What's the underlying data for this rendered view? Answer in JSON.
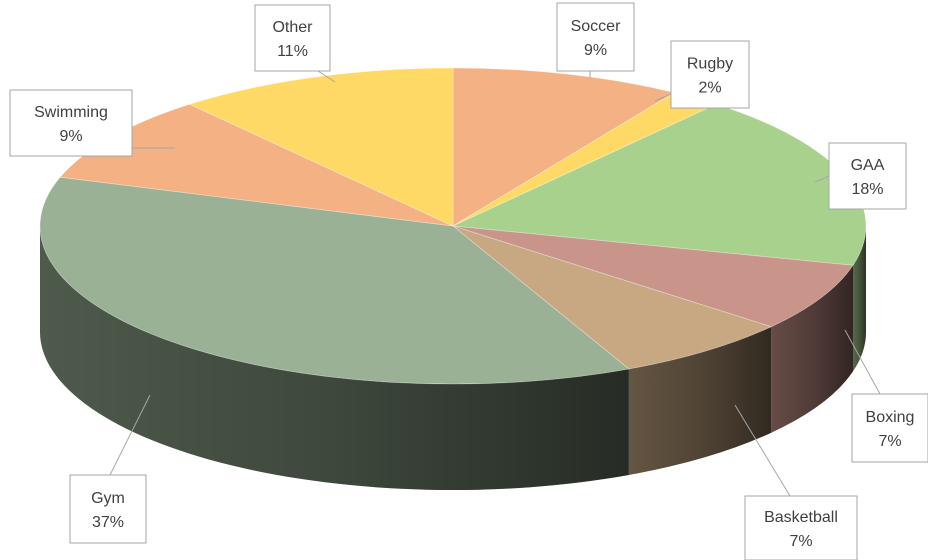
{
  "chart_data": {
    "type": "pie",
    "title": "",
    "style": "3d",
    "slices": [
      {
        "label": "Soccer",
        "percent_label": "9%",
        "value": 9,
        "color": "#f4b183"
      },
      {
        "label": "Rugby",
        "percent_label": "2%",
        "value": 2,
        "color": "#ffd966"
      },
      {
        "label": "GAA",
        "percent_label": "18%",
        "value": 18,
        "color": "#a9d18e"
      },
      {
        "label": "Boxing",
        "percent_label": "7%",
        "value": 7,
        "color": "#c9958a"
      },
      {
        "label": "Basketball",
        "percent_label": "7%",
        "value": 7,
        "color": "#c7a882"
      },
      {
        "label": "Gym",
        "percent_label": "37%",
        "value": 37,
        "color": "#9ab195"
      },
      {
        "label": "Swimming",
        "percent_label": "9%",
        "value": 9,
        "color": "#f4b183"
      },
      {
        "label": "Other",
        "percent_label": "11%",
        "value": 11,
        "color": "#ffd966"
      }
    ]
  }
}
